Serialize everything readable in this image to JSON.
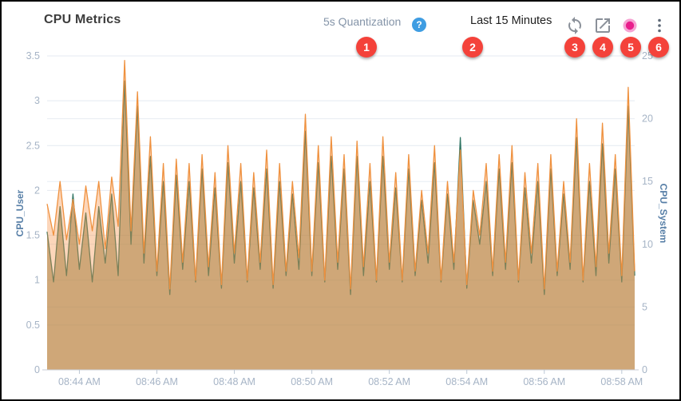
{
  "header": {
    "title": "CPU Metrics",
    "quantization_label": "5s Quantization",
    "help_glyph": "?",
    "time_range": "Last 15 Minutes",
    "icons": {
      "help": "help-icon",
      "refresh": "refresh-icon",
      "export": "export-icon",
      "record": "record-indicator-icon",
      "menu": "kebab-menu-icon"
    }
  },
  "badges": [
    "1",
    "2",
    "3",
    "4",
    "5",
    "6"
  ],
  "colors": {
    "badge_red": "#f4423a",
    "help_blue": "#3f9de2",
    "record_outer_pink": "#f6a3d3",
    "record_inner_magenta": "#e91e8c",
    "icon_gray": "#8a9099",
    "axis_title_blue": "#567ea6",
    "tick_label": "#a6b4c6",
    "gridline": "#e4eaf1",
    "series_user_orange": "#ef913f",
    "series_system_teal": "#2e7462"
  },
  "chart_data": {
    "type": "area",
    "title": "CPU Metrics",
    "x_start": "08:43:10 AM",
    "x_step_seconds": 10,
    "grid": true,
    "legend": false,
    "x_ticks": [
      {
        "label": "08:44 AM",
        "index": 5
      },
      {
        "label": "08:46 AM",
        "index": 17
      },
      {
        "label": "08:48 AM",
        "index": 29
      },
      {
        "label": "08:50 AM",
        "index": 41
      },
      {
        "label": "08:52 AM",
        "index": 53
      },
      {
        "label": "08:54 AM",
        "index": 65
      },
      {
        "label": "08:56 AM",
        "index": 77
      },
      {
        "label": "08:58 AM",
        "index": 89
      }
    ],
    "left_axis": {
      "label": "CPU_User",
      "min": 0,
      "max": 3.5,
      "ticks": [
        0,
        0.5,
        1,
        1.5,
        2,
        2.5,
        3,
        3.5
      ]
    },
    "right_axis": {
      "label": "CPU_System",
      "min": 0,
      "max": 25,
      "ticks": [
        0,
        5,
        10,
        15,
        20,
        25
      ]
    },
    "series": [
      {
        "name": "CPU_User",
        "axis": "left",
        "color": "#ef913f",
        "fill": "rgba(247,148,73,0.38)",
        "values": [
          1.85,
          1.5,
          2.1,
          1.45,
          1.9,
          1.4,
          2.05,
          1.55,
          2.1,
          1.35,
          2.15,
          1.6,
          3.45,
          1.55,
          3.1,
          1.3,
          2.6,
          1.1,
          2.3,
          0.9,
          2.35,
          1.2,
          2.3,
          1.0,
          2.4,
          1.15,
          2.2,
          0.95,
          2.5,
          1.3,
          2.3,
          1.0,
          2.2,
          1.2,
          2.45,
          0.95,
          2.3,
          1.1,
          2.1,
          1.25,
          2.85,
          1.1,
          2.5,
          1.0,
          2.6,
          1.2,
          2.4,
          0.9,
          2.55,
          1.15,
          2.3,
          1.0,
          2.6,
          1.2,
          2.2,
          1.0,
          2.4,
          1.1,
          2.0,
          1.3,
          2.5,
          1.0,
          2.1,
          1.2,
          2.45,
          0.95,
          2.0,
          1.5,
          2.3,
          1.1,
          2.4,
          1.2,
          2.5,
          1.0,
          2.2,
          1.3,
          2.3,
          0.9,
          2.4,
          1.1,
          2.1,
          1.2,
          2.8,
          1.0,
          2.3,
          1.15,
          2.75,
          1.3,
          2.4,
          1.05,
          3.15,
          1.1
        ]
      },
      {
        "name": "CPU_System",
        "axis": "right",
        "color": "#2e7462",
        "fill": "rgba(122,118,62,0.55)",
        "values": [
          11,
          7,
          13,
          7.5,
          14,
          8,
          12.5,
          7,
          13,
          8.5,
          14,
          7.5,
          23,
          10,
          21,
          8.5,
          17,
          7.5,
          15,
          6,
          15.5,
          8,
          15,
          7,
          16,
          7.5,
          14.5,
          6.5,
          16.5,
          8.5,
          15,
          7,
          14.5,
          8,
          16,
          6.5,
          15,
          7.5,
          14,
          8,
          19,
          7.5,
          16.5,
          7,
          17,
          8,
          16,
          6,
          17,
          7.5,
          15,
          7,
          17,
          8,
          14.5,
          7,
          16,
          7.5,
          13.5,
          8.5,
          16.5,
          7,
          14,
          8,
          18.5,
          6.5,
          13.5,
          10,
          15,
          7.5,
          16,
          8,
          16.5,
          7,
          14.5,
          8.5,
          15,
          6,
          16,
          7.5,
          14,
          8,
          18.5,
          7,
          15,
          7.5,
          18,
          8.5,
          16,
          7,
          21,
          7.5
        ]
      }
    ]
  }
}
